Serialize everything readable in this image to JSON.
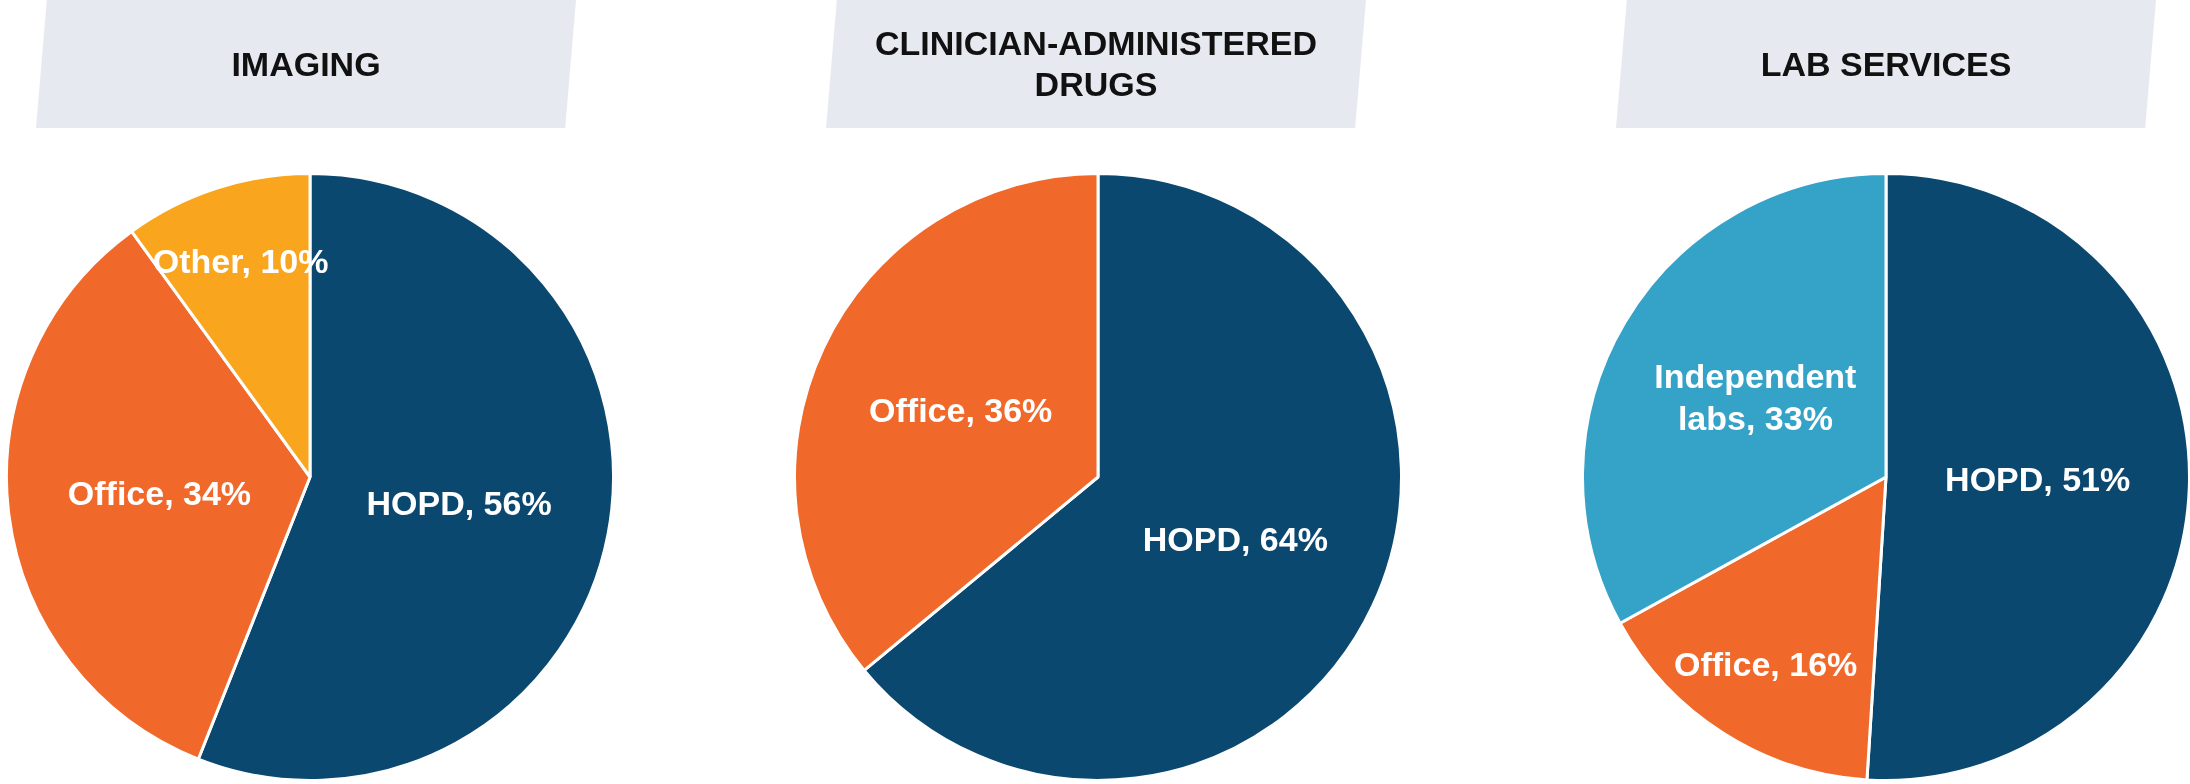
{
  "chart_data": [
    {
      "type": "pie",
      "title": "IMAGING",
      "categories": [
        "HOPD",
        "Office",
        "Other"
      ],
      "values": [
        56,
        34,
        10
      ],
      "value_labels": [
        "56%",
        "34%",
        "10%"
      ],
      "colors": [
        "#0b4870",
        "#f0682a",
        "#f9a61e"
      ],
      "legend": false
    },
    {
      "type": "pie",
      "title": "CLINICIAN-ADMINISTERED DRUGS",
      "categories": [
        "HOPD",
        "Office"
      ],
      "values": [
        64,
        36
      ],
      "value_labels": [
        "64%",
        "36%"
      ],
      "colors": [
        "#0b4870",
        "#f0682a"
      ],
      "legend": false
    },
    {
      "type": "pie",
      "title": "LAB SERVICES",
      "categories": [
        "HOPD",
        "Office",
        "Independent labs"
      ],
      "values": [
        51,
        16,
        33
      ],
      "value_labels": [
        "51%",
        "16%",
        "33%"
      ],
      "colors": [
        "#0b4870",
        "#f0682a",
        "#35a2c8"
      ],
      "legend": false
    }
  ]
}
